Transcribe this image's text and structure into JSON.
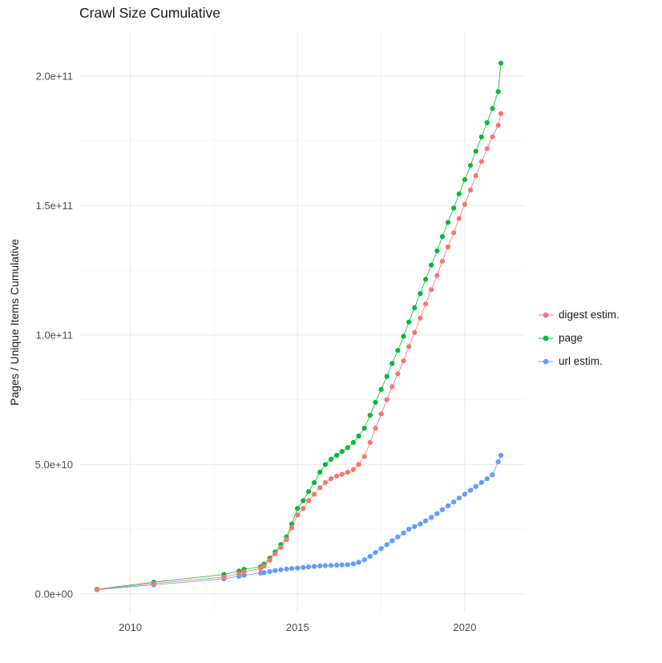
{
  "title": "Crawl Size Cumulative",
  "style": {
    "background": "#FFFFFF",
    "grid_major_color": "#EBEBEB",
    "grid_minor_color": "#F4F4F4",
    "tick_label_color": "#4D4D4D",
    "text_color": "#1A1A1A"
  },
  "chart_data": {
    "type": "scatter",
    "title": "Crawl Size Cumulative",
    "xlabel": "",
    "ylabel": "Pages / Unique Items Cumulative",
    "legend_position": "right",
    "grid": true,
    "xlim": [
      2008.5,
      2021.8
    ],
    "ylim": [
      -0.75,
      21.7
    ],
    "y_unit_multiplier": 10000000000,
    "x_ticks": [
      {
        "v": 2010,
        "label": "2010"
      },
      {
        "v": 2015,
        "label": "2015"
      },
      {
        "v": 2020,
        "label": "2020"
      }
    ],
    "x_minor_ticks": [
      2012.5,
      2017.5
    ],
    "y_ticks": [
      {
        "v": 0,
        "label": "0.0e+00"
      },
      {
        "v": 5,
        "label": "5.0e+10"
      },
      {
        "v": 10,
        "label": "1.0e+11"
      },
      {
        "v": 15,
        "label": "1.5e+11"
      },
      {
        "v": 20,
        "label": "2.0e+11"
      }
    ],
    "y_minor_ticks": [
      2.5,
      7.5,
      12.5,
      17.5
    ],
    "series": [
      {
        "name": "digest estim.",
        "color": "#F8766D",
        "points": [
          [
            2009.0,
            0.17
          ],
          [
            2010.7,
            0.4
          ],
          [
            2012.8,
            0.65
          ],
          [
            2013.25,
            0.78
          ],
          [
            2013.4,
            0.85
          ],
          [
            2013.9,
            0.98
          ],
          [
            2014.0,
            1.08
          ],
          [
            2014.17,
            1.3
          ],
          [
            2014.33,
            1.55
          ],
          [
            2014.5,
            1.8
          ],
          [
            2014.67,
            2.1
          ],
          [
            2014.83,
            2.55
          ],
          [
            2015.0,
            3.05
          ],
          [
            2015.17,
            3.3
          ],
          [
            2015.33,
            3.6
          ],
          [
            2015.5,
            3.85
          ],
          [
            2015.67,
            4.1
          ],
          [
            2015.83,
            4.3
          ],
          [
            2016.0,
            4.45
          ],
          [
            2016.17,
            4.55
          ],
          [
            2016.33,
            4.62
          ],
          [
            2016.5,
            4.7
          ],
          [
            2016.67,
            4.8
          ],
          [
            2016.83,
            5.0
          ],
          [
            2017.0,
            5.3
          ],
          [
            2017.17,
            5.85
          ],
          [
            2017.33,
            6.4
          ],
          [
            2017.5,
            6.95
          ],
          [
            2017.67,
            7.5
          ],
          [
            2017.83,
            8.0
          ],
          [
            2018.0,
            8.5
          ],
          [
            2018.17,
            9.0
          ],
          [
            2018.33,
            9.55
          ],
          [
            2018.5,
            10.1
          ],
          [
            2018.67,
            10.65
          ],
          [
            2018.83,
            11.2
          ],
          [
            2019.0,
            11.75
          ],
          [
            2019.17,
            12.3
          ],
          [
            2019.33,
            12.85
          ],
          [
            2019.5,
            13.4
          ],
          [
            2019.67,
            13.95
          ],
          [
            2019.83,
            14.5
          ],
          [
            2020.0,
            15.05
          ],
          [
            2020.17,
            15.6
          ],
          [
            2020.33,
            16.15
          ],
          [
            2020.5,
            16.7
          ],
          [
            2020.67,
            17.2
          ],
          [
            2020.83,
            17.65
          ],
          [
            2021.0,
            18.1
          ],
          [
            2021.08,
            18.55
          ]
        ]
      },
      {
        "name": "page",
        "color": "#00BA38",
        "points": [
          [
            2009.0,
            0.18
          ],
          [
            2010.7,
            0.45
          ],
          [
            2012.8,
            0.75
          ],
          [
            2013.25,
            0.88
          ],
          [
            2013.4,
            0.95
          ],
          [
            2013.9,
            1.05
          ],
          [
            2014.0,
            1.15
          ],
          [
            2014.17,
            1.38
          ],
          [
            2014.33,
            1.62
          ],
          [
            2014.5,
            1.9
          ],
          [
            2014.67,
            2.2
          ],
          [
            2014.83,
            2.7
          ],
          [
            2015.0,
            3.3
          ],
          [
            2015.17,
            3.6
          ],
          [
            2015.33,
            3.95
          ],
          [
            2015.5,
            4.3
          ],
          [
            2015.67,
            4.7
          ],
          [
            2015.83,
            5.0
          ],
          [
            2016.0,
            5.2
          ],
          [
            2016.17,
            5.35
          ],
          [
            2016.33,
            5.5
          ],
          [
            2016.5,
            5.65
          ],
          [
            2016.67,
            5.85
          ],
          [
            2016.83,
            6.1
          ],
          [
            2017.0,
            6.4
          ],
          [
            2017.17,
            6.9
          ],
          [
            2017.33,
            7.4
          ],
          [
            2017.5,
            7.9
          ],
          [
            2017.67,
            8.4
          ],
          [
            2017.83,
            8.9
          ],
          [
            2018.0,
            9.4
          ],
          [
            2018.17,
            9.95
          ],
          [
            2018.33,
            10.5
          ],
          [
            2018.5,
            11.05
          ],
          [
            2018.67,
            11.6
          ],
          [
            2018.83,
            12.15
          ],
          [
            2019.0,
            12.7
          ],
          [
            2019.17,
            13.25
          ],
          [
            2019.33,
            13.8
          ],
          [
            2019.5,
            14.35
          ],
          [
            2019.67,
            14.9
          ],
          [
            2019.83,
            15.45
          ],
          [
            2020.0,
            16.0
          ],
          [
            2020.17,
            16.55
          ],
          [
            2020.33,
            17.1
          ],
          [
            2020.5,
            17.65
          ],
          [
            2020.67,
            18.2
          ],
          [
            2020.83,
            18.75
          ],
          [
            2021.0,
            19.4
          ],
          [
            2021.08,
            20.5
          ]
        ]
      },
      {
        "name": "url estim.",
        "color": "#619CFF",
        "points": [
          [
            2009.0,
            0.16
          ],
          [
            2010.7,
            0.35
          ],
          [
            2012.8,
            0.58
          ],
          [
            2013.25,
            0.68
          ],
          [
            2013.4,
            0.72
          ],
          [
            2013.9,
            0.8
          ],
          [
            2014.0,
            0.82
          ],
          [
            2014.17,
            0.86
          ],
          [
            2014.33,
            0.9
          ],
          [
            2014.5,
            0.93
          ],
          [
            2014.67,
            0.96
          ],
          [
            2014.83,
            0.98
          ],
          [
            2015.0,
            1.0
          ],
          [
            2015.17,
            1.02
          ],
          [
            2015.33,
            1.04
          ],
          [
            2015.5,
            1.06
          ],
          [
            2015.67,
            1.08
          ],
          [
            2015.83,
            1.09
          ],
          [
            2016.0,
            1.1
          ],
          [
            2016.17,
            1.11
          ],
          [
            2016.33,
            1.12
          ],
          [
            2016.5,
            1.13
          ],
          [
            2016.67,
            1.16
          ],
          [
            2016.83,
            1.22
          ],
          [
            2017.0,
            1.32
          ],
          [
            2017.17,
            1.45
          ],
          [
            2017.33,
            1.6
          ],
          [
            2017.5,
            1.75
          ],
          [
            2017.67,
            1.9
          ],
          [
            2017.83,
            2.05
          ],
          [
            2018.0,
            2.2
          ],
          [
            2018.17,
            2.35
          ],
          [
            2018.33,
            2.5
          ],
          [
            2018.5,
            2.6
          ],
          [
            2018.67,
            2.7
          ],
          [
            2018.83,
            2.82
          ],
          [
            2019.0,
            2.95
          ],
          [
            2019.17,
            3.1
          ],
          [
            2019.33,
            3.25
          ],
          [
            2019.5,
            3.4
          ],
          [
            2019.67,
            3.55
          ],
          [
            2019.83,
            3.7
          ],
          [
            2020.0,
            3.85
          ],
          [
            2020.17,
            4.0
          ],
          [
            2020.33,
            4.15
          ],
          [
            2020.5,
            4.3
          ],
          [
            2020.67,
            4.45
          ],
          [
            2020.83,
            4.6
          ],
          [
            2021.0,
            5.1
          ],
          [
            2021.08,
            5.35
          ]
        ]
      }
    ]
  }
}
